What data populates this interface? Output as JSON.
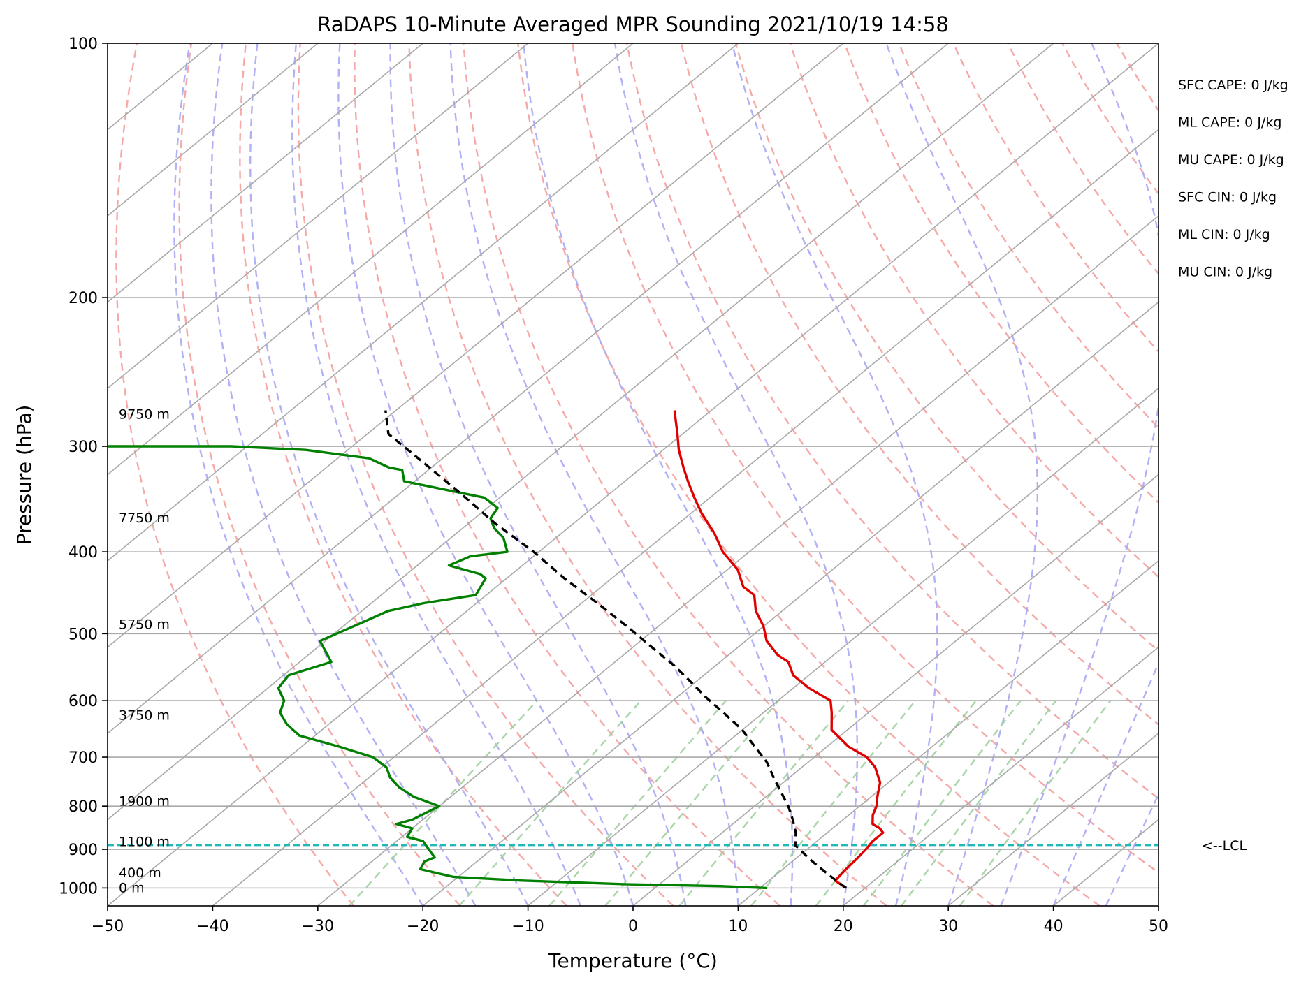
{
  "chart_data": {
    "type": "line",
    "title": "RaDAPS 10-Minute Averaged MPR Sounding 2021/10/19 14:58",
    "xlabel": "Temperature (°C)",
    "ylabel": "Pressure (hPa)",
    "xlim": [
      -50,
      50
    ],
    "ylim": [
      1050,
      100
    ],
    "y_scale": "log",
    "x_ticks": [
      -50,
      -40,
      -30,
      -20,
      -10,
      0,
      10,
      20,
      30,
      40,
      50
    ],
    "x_tick_labels": [
      "−50",
      "−40",
      "−30",
      "−20",
      "−10",
      "0",
      "10",
      "20",
      "30",
      "40",
      "50"
    ],
    "y_ticks": [
      100,
      200,
      300,
      400,
      500,
      600,
      700,
      800,
      900,
      1000
    ],
    "y_tick_labels": [
      "100",
      "200",
      "300",
      "400",
      "500",
      "600",
      "700",
      "800",
      "900",
      "1000"
    ],
    "skew_t": true,
    "colors": {
      "temperature": "#e00000",
      "dewpoint": "#008000",
      "parcel": "#000000",
      "lcl": "#20b8b8",
      "isotherm": "#a8a8a8",
      "dry_adiabat": "#f4a0a0",
      "moist_adiabat": "#a8a8f4",
      "mixing_ratio": "#a0d0a0",
      "grid": "#aaaaaa"
    },
    "series": [
      {
        "key": "temperature",
        "points": [
          [
            18.2,
            1000
          ],
          [
            16.3,
            980
          ],
          [
            16.0,
            950
          ],
          [
            15.8,
            920
          ],
          [
            15.6,
            900
          ],
          [
            15.3,
            880
          ],
          [
            15.3,
            860
          ],
          [
            14.5,
            850
          ],
          [
            13.3,
            840
          ],
          [
            12.3,
            820
          ],
          [
            11.6,
            800
          ],
          [
            10.6,
            780
          ],
          [
            9.2,
            750
          ],
          [
            7.0,
            720
          ],
          [
            5.0,
            700
          ],
          [
            2.0,
            680
          ],
          [
            -1.5,
            650
          ],
          [
            -3.5,
            620
          ],
          [
            -5.0,
            600
          ],
          [
            -8.5,
            580
          ],
          [
            -11.5,
            560
          ],
          [
            -13.5,
            540
          ],
          [
            -15.3,
            530
          ],
          [
            -18.0,
            510
          ],
          [
            -20.0,
            490
          ],
          [
            -22.5,
            470
          ],
          [
            -24.5,
            450
          ],
          [
            -26.5,
            440
          ],
          [
            -29.0,
            420
          ],
          [
            -32.5,
            400
          ],
          [
            -35.5,
            380
          ],
          [
            -39.0,
            360
          ],
          [
            -41.5,
            345
          ],
          [
            -44.0,
            330
          ],
          [
            -46.0,
            318
          ],
          [
            -48.5,
            303
          ],
          [
            -50.5,
            290
          ],
          [
            -53.5,
            272
          ]
        ]
      },
      {
        "key": "dewpoint",
        "points": [
          [
            10.7,
            1000
          ],
          [
            6.0,
            995
          ],
          [
            -3.0,
            990
          ],
          [
            -13.5,
            980
          ],
          [
            -20.5,
            970
          ],
          [
            -24.5,
            950
          ],
          [
            -25.0,
            930
          ],
          [
            -24.5,
            920
          ],
          [
            -26.0,
            900
          ],
          [
            -27.5,
            880
          ],
          [
            -29.5,
            870
          ],
          [
            -30.0,
            850
          ],
          [
            -32.0,
            840
          ],
          [
            -31.0,
            830
          ],
          [
            -30.0,
            800
          ],
          [
            -33.5,
            780
          ],
          [
            -36.0,
            760
          ],
          [
            -38.0,
            740
          ],
          [
            -39.5,
            720
          ],
          [
            -42.0,
            700
          ],
          [
            -46.5,
            680
          ],
          [
            -51.5,
            660
          ],
          [
            -54.0,
            640
          ],
          [
            -56.0,
            620
          ],
          [
            -57.0,
            600
          ],
          [
            -59.0,
            580
          ],
          [
            -59.5,
            560
          ],
          [
            -57.0,
            540
          ],
          [
            -60.5,
            510
          ],
          [
            -59.0,
            490
          ],
          [
            -57.5,
            470
          ],
          [
            -55.0,
            460
          ],
          [
            -51.0,
            450
          ],
          [
            -52.0,
            430
          ],
          [
            -53.0,
            425
          ],
          [
            -57.0,
            415
          ],
          [
            -56.0,
            405
          ],
          [
            -53.0,
            400
          ],
          [
            -55.0,
            385
          ],
          [
            -57.0,
            375
          ],
          [
            -58.5,
            365
          ],
          [
            -59.0,
            355
          ],
          [
            -61.5,
            345
          ],
          [
            -71.0,
            330
          ],
          [
            -72.5,
            320
          ],
          [
            -74.0,
            318
          ],
          [
            -77.0,
            310
          ],
          [
            -84.0,
            303
          ],
          [
            -91.5,
            300
          ],
          [
            -110,
            300
          ]
        ]
      },
      {
        "key": "parcel",
        "points": [
          [
            18.2,
            1000
          ],
          [
            16.4,
            980
          ],
          [
            14.6,
            960
          ],
          [
            12.8,
            940
          ],
          [
            11.0,
            920
          ],
          [
            9.3,
            900
          ],
          [
            8.4,
            890
          ],
          [
            7.0,
            860
          ],
          [
            5.2,
            830
          ],
          [
            3.2,
            800
          ],
          [
            0.9,
            770
          ],
          [
            -1.5,
            740
          ],
          [
            -3.9,
            710
          ],
          [
            -6.9,
            680
          ],
          [
            -10.0,
            650
          ],
          [
            -13.8,
            620
          ],
          [
            -17.2,
            595
          ],
          [
            -20.5,
            570
          ],
          [
            -24.0,
            545
          ],
          [
            -28.0,
            520
          ],
          [
            -33.0,
            490
          ],
          [
            -38.5,
            460
          ],
          [
            -44.5,
            430
          ],
          [
            -50.5,
            400
          ],
          [
            -57.5,
            370
          ],
          [
            -64.5,
            340
          ],
          [
            -71.5,
            313
          ],
          [
            -78.0,
            290
          ],
          [
            -81.0,
            272
          ]
        ]
      }
    ],
    "lcl_pressure": 890,
    "lcl_label": "<--LCL",
    "height_labels": [
      {
        "text": "9750 m",
        "p": 275
      },
      {
        "text": "7750 m",
        "p": 365
      },
      {
        "text": "5750 m",
        "p": 488
      },
      {
        "text": "3750 m",
        "p": 625
      },
      {
        "text": "1900 m",
        "p": 790
      },
      {
        "text": "1100 m",
        "p": 882
      },
      {
        "text": "400 m",
        "p": 960
      },
      {
        "text": "0 m",
        "p": 1000
      }
    ],
    "indices": [
      "SFC CAPE: 0 J/kg",
      "ML CAPE: 0 J/kg",
      "MU CAPE: 0 J/kg",
      "SFC CIN: 0 J/kg",
      "ML CIN: 0 J/kg",
      "MU CIN: 0 J/kg"
    ]
  }
}
